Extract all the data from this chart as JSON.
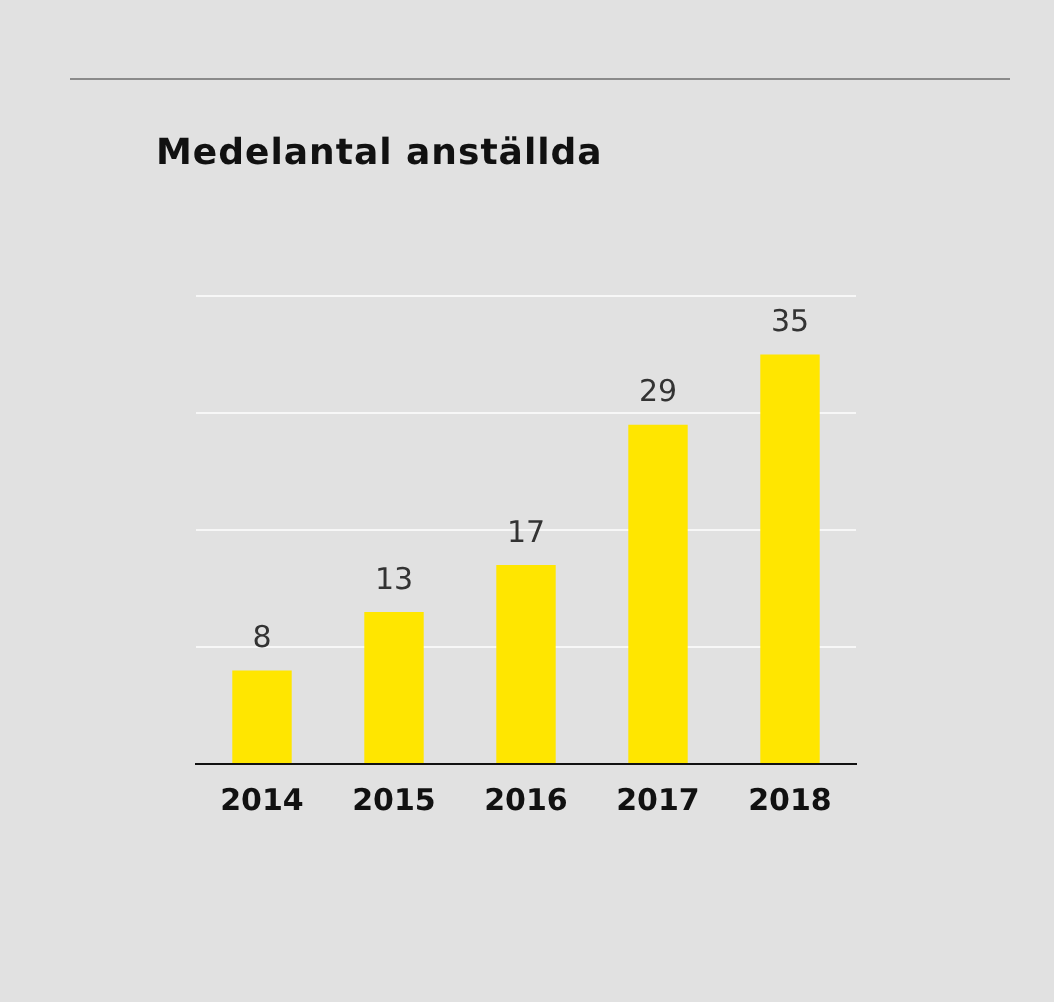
{
  "chart_data": {
    "type": "bar",
    "title": "Medelantal anställda",
    "categories": [
      "2014",
      "2015",
      "2016",
      "2017",
      "2018"
    ],
    "values": [
      8,
      13,
      17,
      29,
      35
    ],
    "color": "#ffe600",
    "ylim": [
      0,
      40
    ],
    "yticks": [
      {
        "value": 0,
        "label": null
      },
      {
        "value": 10,
        "label": null
      },
      {
        "value": 20,
        "label": null
      },
      {
        "value": 30,
        "label": null
      },
      {
        "value": 40,
        "label": null
      }
    ],
    "grid": "y",
    "tick_labels": "x",
    "data_labels": true
  }
}
